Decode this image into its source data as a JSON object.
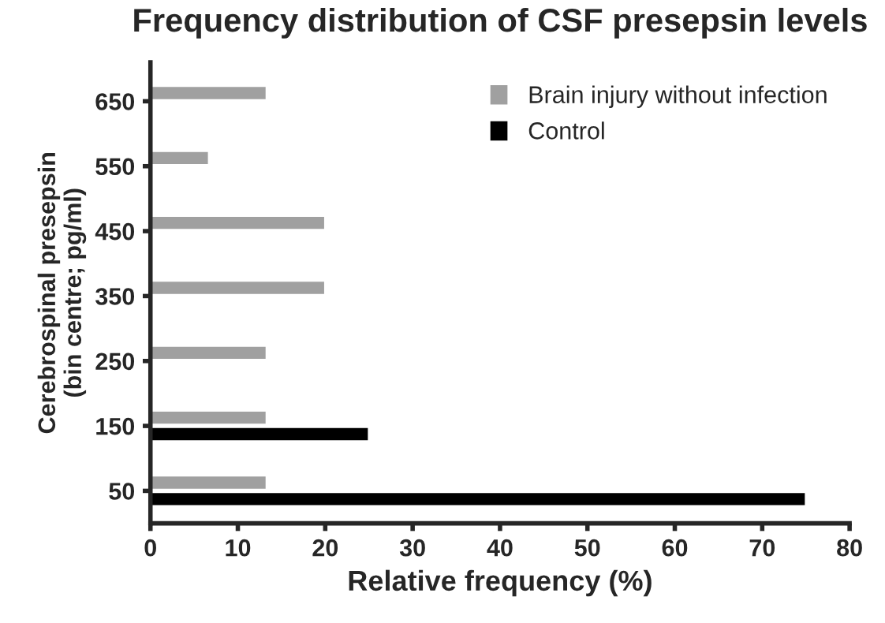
{
  "chart_data": {
    "type": "bar",
    "orientation": "horizontal",
    "title": "Frequency distribution of CSF presepsin levels",
    "xlabel": "Relative frequency (%)",
    "ylabel": "Cerebrospinal presepsin\n(bin centre; pg/ml)",
    "categories": [
      "650",
      "550",
      "450",
      "350",
      "250",
      "150",
      "50"
    ],
    "series": [
      {
        "name": "Brain injury without infection",
        "color": "#a0a0a0",
        "values": [
          13.3,
          6.7,
          20,
          20,
          13.3,
          13.3,
          13.3
        ]
      },
      {
        "name": "Control",
        "color": "#000000",
        "values": [
          null,
          null,
          null,
          null,
          null,
          25,
          75
        ]
      }
    ],
    "xlim": [
      0,
      80
    ],
    "xticks": [
      0,
      10,
      20,
      30,
      40,
      50,
      60,
      70,
      80
    ],
    "grid": false,
    "legend": "top right"
  }
}
